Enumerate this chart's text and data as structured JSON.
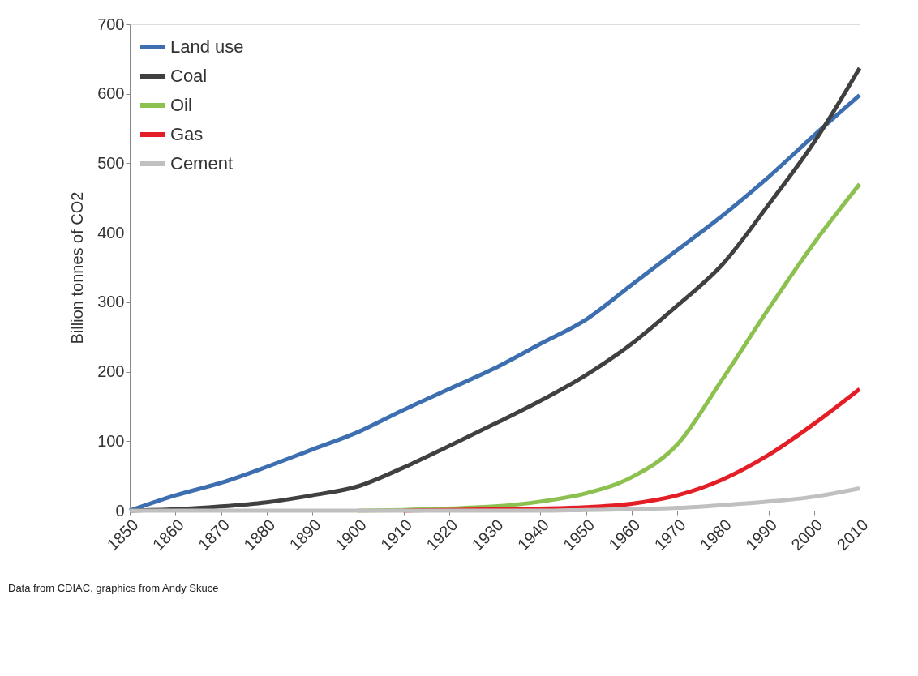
{
  "chart_data": {
    "type": "line",
    "ylabel": "Billion tonnes of CO2",
    "x": [
      1850,
      1860,
      1870,
      1880,
      1890,
      1900,
      1910,
      1920,
      1930,
      1940,
      1950,
      1960,
      1970,
      1980,
      1990,
      2000,
      2010
    ],
    "series": [
      {
        "name": "Land use",
        "color": "#3d6fb0",
        "values": [
          0,
          22,
          40,
          63,
          88,
          113,
          145,
          175,
          205,
          240,
          275,
          325,
          375,
          425,
          480,
          540,
          598
        ]
      },
      {
        "name": "Coal",
        "color": "#404040",
        "values": [
          0,
          2,
          6,
          12,
          22,
          35,
          62,
          93,
          125,
          158,
          195,
          240,
          295,
          355,
          440,
          530,
          637
        ]
      },
      {
        "name": "Oil",
        "color": "#8cc04f",
        "values": [
          null,
          null,
          null,
          null,
          null,
          0,
          1,
          3,
          6,
          13,
          25,
          48,
          95,
          190,
          290,
          385,
          470
        ]
      },
      {
        "name": "Gas",
        "color": "#e41e26",
        "values": [
          null,
          null,
          null,
          null,
          null,
          null,
          0,
          1,
          2,
          3,
          5,
          10,
          22,
          45,
          80,
          125,
          175
        ]
      },
      {
        "name": "Cement",
        "color": "#c0c0c0",
        "values": [
          0,
          0,
          0,
          0,
          0,
          0,
          0,
          0,
          0,
          0,
          1,
          2,
          4,
          8,
          13,
          20,
          32
        ]
      }
    ],
    "xlim": [
      1850,
      2010
    ],
    "xticks": [
      1850,
      1860,
      1870,
      1880,
      1890,
      1900,
      1910,
      1920,
      1930,
      1940,
      1950,
      1960,
      1970,
      1980,
      1990,
      2000,
      2010
    ],
    "ylim": [
      0,
      700
    ],
    "yticks": [
      0,
      100,
      200,
      300,
      400,
      500,
      600,
      700
    ],
    "grid": false,
    "legend": "top left",
    "marker": "none",
    "line_style": "solid",
    "annotations": [
      "Data from CDIAC, graphics from Andy Skuce"
    ]
  }
}
